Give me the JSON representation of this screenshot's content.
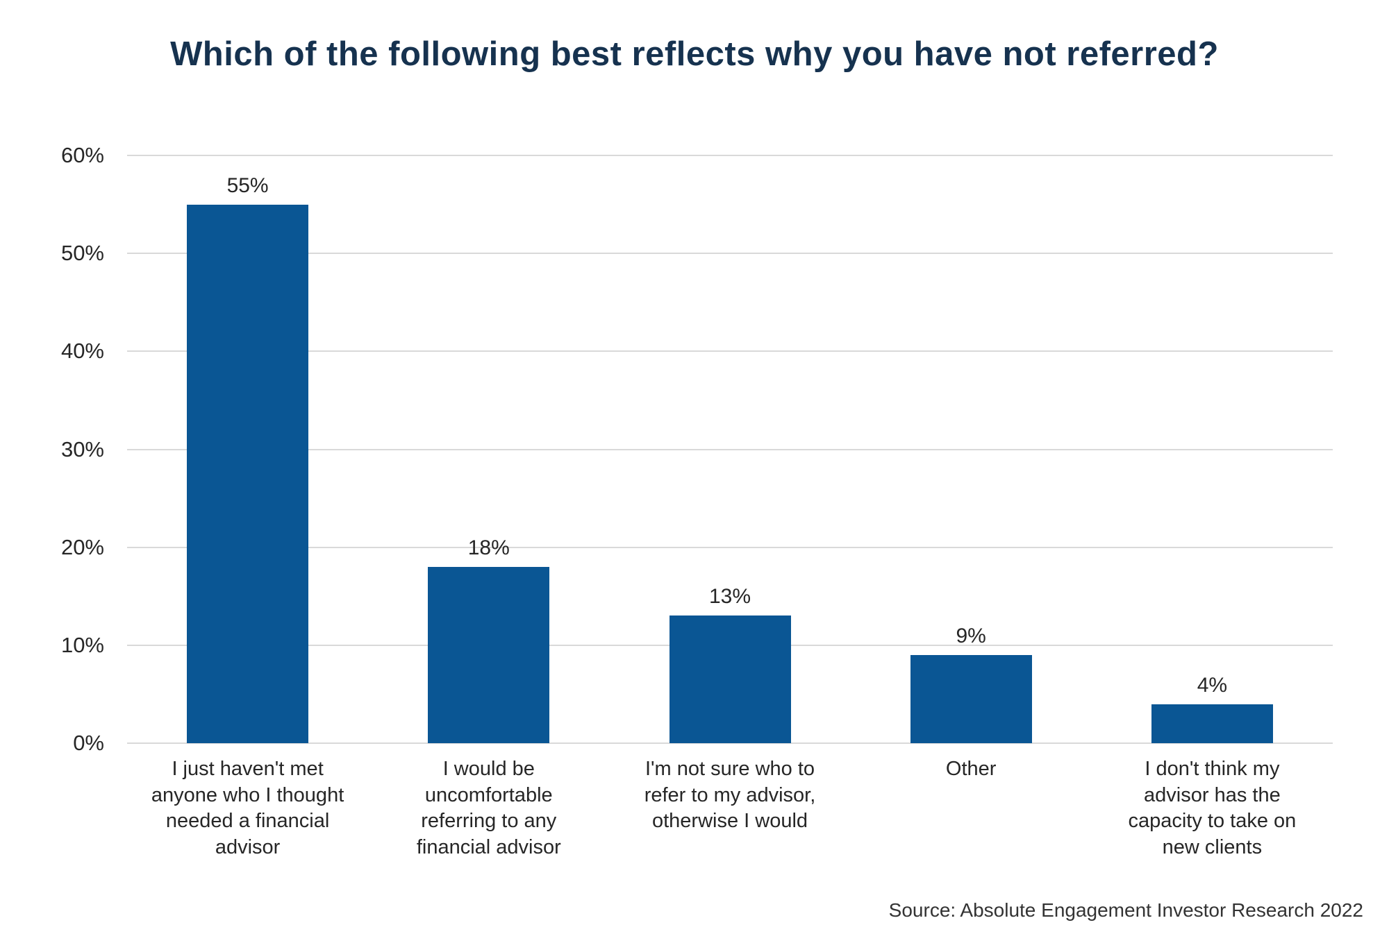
{
  "colors": {
    "background": "#FFFFFF",
    "title": "#16324F",
    "text": "#262626",
    "grid": "#D9D9D9",
    "bar": "#0A5694"
  },
  "source_note": "Source: Absolute Engagement Investor Research 2022",
  "chart_data": {
    "type": "bar",
    "title": "Which of the following best reflects why you have not referred?",
    "xlabel": "",
    "ylabel": "",
    "ylim": [
      0,
      60
    ],
    "grid": "horizontal gridlines only, no axis lines",
    "legend": "none",
    "bar_color": "#0A5694",
    "categories": [
      "I just haven't met anyone who I thought needed a financial advisor",
      "I would be uncomfortable referring to any financial advisor",
      "I'm not sure who to refer to my advisor, otherwise I would",
      "Other",
      "I don't think my advisor has the capacity to take on new clients"
    ],
    "category_lines": [
      [
        "I just haven't met",
        "anyone who I thought",
        "needed a financial",
        "advisor"
      ],
      [
        "I would be",
        "uncomfortable",
        "referring to any",
        "financial advisor"
      ],
      [
        "I'm not sure who to",
        "refer to my advisor,",
        "otherwise I would"
      ],
      [
        "Other"
      ],
      [
        "I don't think my",
        "advisor has the",
        "capacity to take on",
        "new clients"
      ]
    ],
    "values": [
      55,
      18,
      13,
      9,
      4
    ],
    "value_labels": [
      "55%",
      "18%",
      "13%",
      "9%",
      "4%"
    ],
    "ytick_values": [
      60,
      50,
      40,
      30,
      20,
      10,
      0
    ],
    "ytick_labels": [
      "60%",
      "50%",
      "40%",
      "30%",
      "20%",
      "10%",
      "0%"
    ]
  }
}
